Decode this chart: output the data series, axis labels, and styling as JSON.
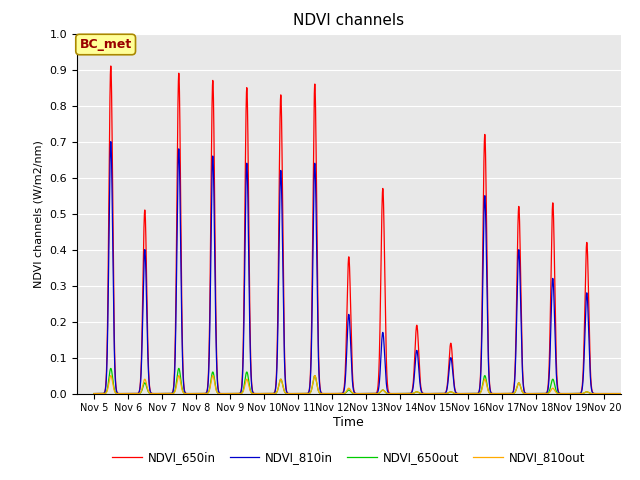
{
  "title": "NDVI channels",
  "xlabel": "Time",
  "ylabel": "NDVI channels (W/m2/nm)",
  "ylim": [
    0.0,
    1.0
  ],
  "yticks": [
    0.0,
    0.1,
    0.2,
    0.3,
    0.4,
    0.5,
    0.6,
    0.7,
    0.8,
    0.9,
    1.0
  ],
  "label_text": "BC_met",
  "label_bg": "#FFFF99",
  "label_border": "#AA8800",
  "bg_color": "#E8E8E8",
  "line_colors": {
    "NDVI_650in": "#FF0000",
    "NDVI_810in": "#0000CC",
    "NDVI_650out": "#00CC00",
    "NDVI_810out": "#FFAA00"
  },
  "legend_labels": [
    "NDVI_650in",
    "NDVI_810in",
    "NDVI_650out",
    "NDVI_810out"
  ],
  "xtick_labels": [
    "Nov 5",
    "Nov 6",
    "Nov 7",
    "Nov 8",
    "Nov 9",
    "Nov 10",
    "Nov 11",
    "Nov 12",
    "Nov 13",
    "Nov 14",
    "Nov 15",
    "Nov 16",
    "Nov 17",
    "Nov 18",
    "Nov 19",
    "Nov 20"
  ],
  "peaks_650in": [
    0.91,
    0.51,
    0.89,
    0.87,
    0.85,
    0.83,
    0.86,
    0.38,
    0.57,
    0.19,
    0.14,
    0.72,
    0.52,
    0.53,
    0.42,
    0.0
  ],
  "peaks_810in": [
    0.7,
    0.4,
    0.68,
    0.66,
    0.64,
    0.62,
    0.64,
    0.22,
    0.17,
    0.12,
    0.1,
    0.55,
    0.4,
    0.32,
    0.28,
    0.0
  ],
  "peaks_650out": [
    0.07,
    0.03,
    0.07,
    0.06,
    0.06,
    0.04,
    0.05,
    0.01,
    0.01,
    0.005,
    0.005,
    0.05,
    0.03,
    0.04,
    0.005,
    0.0
  ],
  "peaks_810out": [
    0.05,
    0.04,
    0.05,
    0.05,
    0.04,
    0.04,
    0.05,
    0.015,
    0.01,
    0.005,
    0.005,
    0.04,
    0.03,
    0.015,
    0.005,
    0.0
  ]
}
